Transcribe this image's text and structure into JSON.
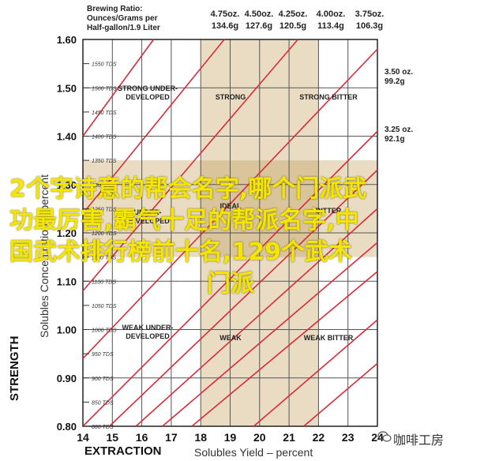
{
  "header": {
    "rows": [
      "Brewing Ratio:",
      "Ounces/Grams per",
      "Half-gallon/1.9 Liter"
    ],
    "ratios": [
      {
        "oz": "4.75oz.",
        "g": "134.6g"
      },
      {
        "oz": "4.50oz.",
        "g": "127.6g"
      },
      {
        "oz": "4.25oz.",
        "g": "120.5g"
      },
      {
        "oz": "4.00oz.",
        "g": "113.4g"
      },
      {
        "oz": "3.75oz.",
        "g": "106.3g"
      }
    ],
    "right_ratios": [
      {
        "oz": "3.50 oz.",
        "g": "99.2g"
      },
      {
        "oz": "3.25 oz.",
        "g": "92.1g"
      }
    ]
  },
  "axes": {
    "y_title_bold": "STRENGTH",
    "y_title_sub": "Solubles Concentration – percent",
    "x_title_bold": "EXTRACTION",
    "x_title_sub": "Solubles Yield – percent"
  },
  "zones": {
    "top_left": "STRONG UNDER-DEVELOPED",
    "top_mid": "STRONG",
    "top_right": "STRONG BITTER",
    "mid_left": "UNDER-DEVELOPED",
    "mid_mid": "IDEAL",
    "mid_right": "BITTER",
    "bot_left": "WEAK UNDER-DEVELOPED",
    "bot_mid": "WEAK",
    "bot_right": "WEAK BITTER"
  },
  "overlay": {
    "line1": "2个字诗意的帮会名字,哪个门派武",
    "line2": "功最厉害,霸气十足的帮派名字,中",
    "line3": "国武术排行榜前十名,129个武术",
    "line4": "门派"
  },
  "watermark": {
    "text": "咖啡工房"
  },
  "chart_data": {
    "type": "line",
    "xlabel": "EXTRACTION  Solubles Yield – percent",
    "ylabel": "STRENGTH  Solubles Concentration – percent",
    "xlim": [
      14,
      24
    ],
    "ylim": [
      0.8,
      1.6
    ],
    "x_ticks": [
      14,
      15,
      16,
      17,
      18,
      19,
      20,
      21,
      22,
      23,
      24
    ],
    "y_ticks": [
      0.8,
      0.9,
      1.0,
      1.1,
      1.2,
      1.3,
      1.4,
      1.5,
      1.6
    ],
    "y_tick_labels": [
      "0.80",
      "0.90",
      "1.00",
      "1.10",
      "1.20",
      "1.30",
      "1.40",
      "1.50",
      "1.60"
    ],
    "tds_ticks": [
      1550,
      1500,
      1450,
      1400,
      1350,
      1300,
      1250,
      1200,
      1150,
      1100,
      1050,
      1000,
      950,
      900,
      850,
      800
    ],
    "tds_unit": "TDS",
    "ideal_extraction": [
      18,
      22
    ],
    "ideal_strength": [
      1.15,
      1.35
    ],
    "series": [
      {
        "name": "4.75oz.",
        "values": [
          [
            17.7,
            0.8
          ],
          [
            24,
            1.12
          ]
        ]
      },
      {
        "name": "4.50oz.",
        "values": [
          [
            16.7,
            0.8
          ],
          [
            24,
            1.18
          ]
        ]
      },
      {
        "name": "4.25oz.",
        "values": [
          [
            15.8,
            0.8
          ],
          [
            24,
            1.25
          ]
        ]
      },
      {
        "name": "4.00oz.",
        "values": [
          [
            14.9,
            0.8
          ],
          [
            24,
            1.33
          ]
        ]
      },
      {
        "name": "3.75oz.",
        "values": [
          [
            14.0,
            0.8
          ],
          [
            24,
            1.41
          ]
        ]
      },
      {
        "name": "",
        "values": [
          [
            14.0,
            0.94
          ],
          [
            24,
            1.58
          ]
        ]
      },
      {
        "name": "",
        "values": [
          [
            14.0,
            1.08
          ],
          [
            21.3,
            1.6
          ]
        ]
      },
      {
        "name": "",
        "values": [
          [
            14.0,
            1.24
          ],
          [
            18.8,
            1.6
          ]
        ]
      },
      {
        "name": "",
        "values": [
          [
            14.0,
            1.4
          ],
          [
            16.4,
            1.6
          ]
        ]
      },
      {
        "name": "3.50 oz.",
        "values": [
          [
            19.8,
            0.8
          ],
          [
            24,
            1.02
          ]
        ]
      },
      {
        "name": "3.25 oz.",
        "values": [
          [
            21.5,
            0.8
          ],
          [
            24,
            0.93
          ]
        ]
      }
    ],
    "colors": {
      "line": "#d62b3a",
      "band": "#e9dcc3",
      "grid": "#555555"
    }
  }
}
